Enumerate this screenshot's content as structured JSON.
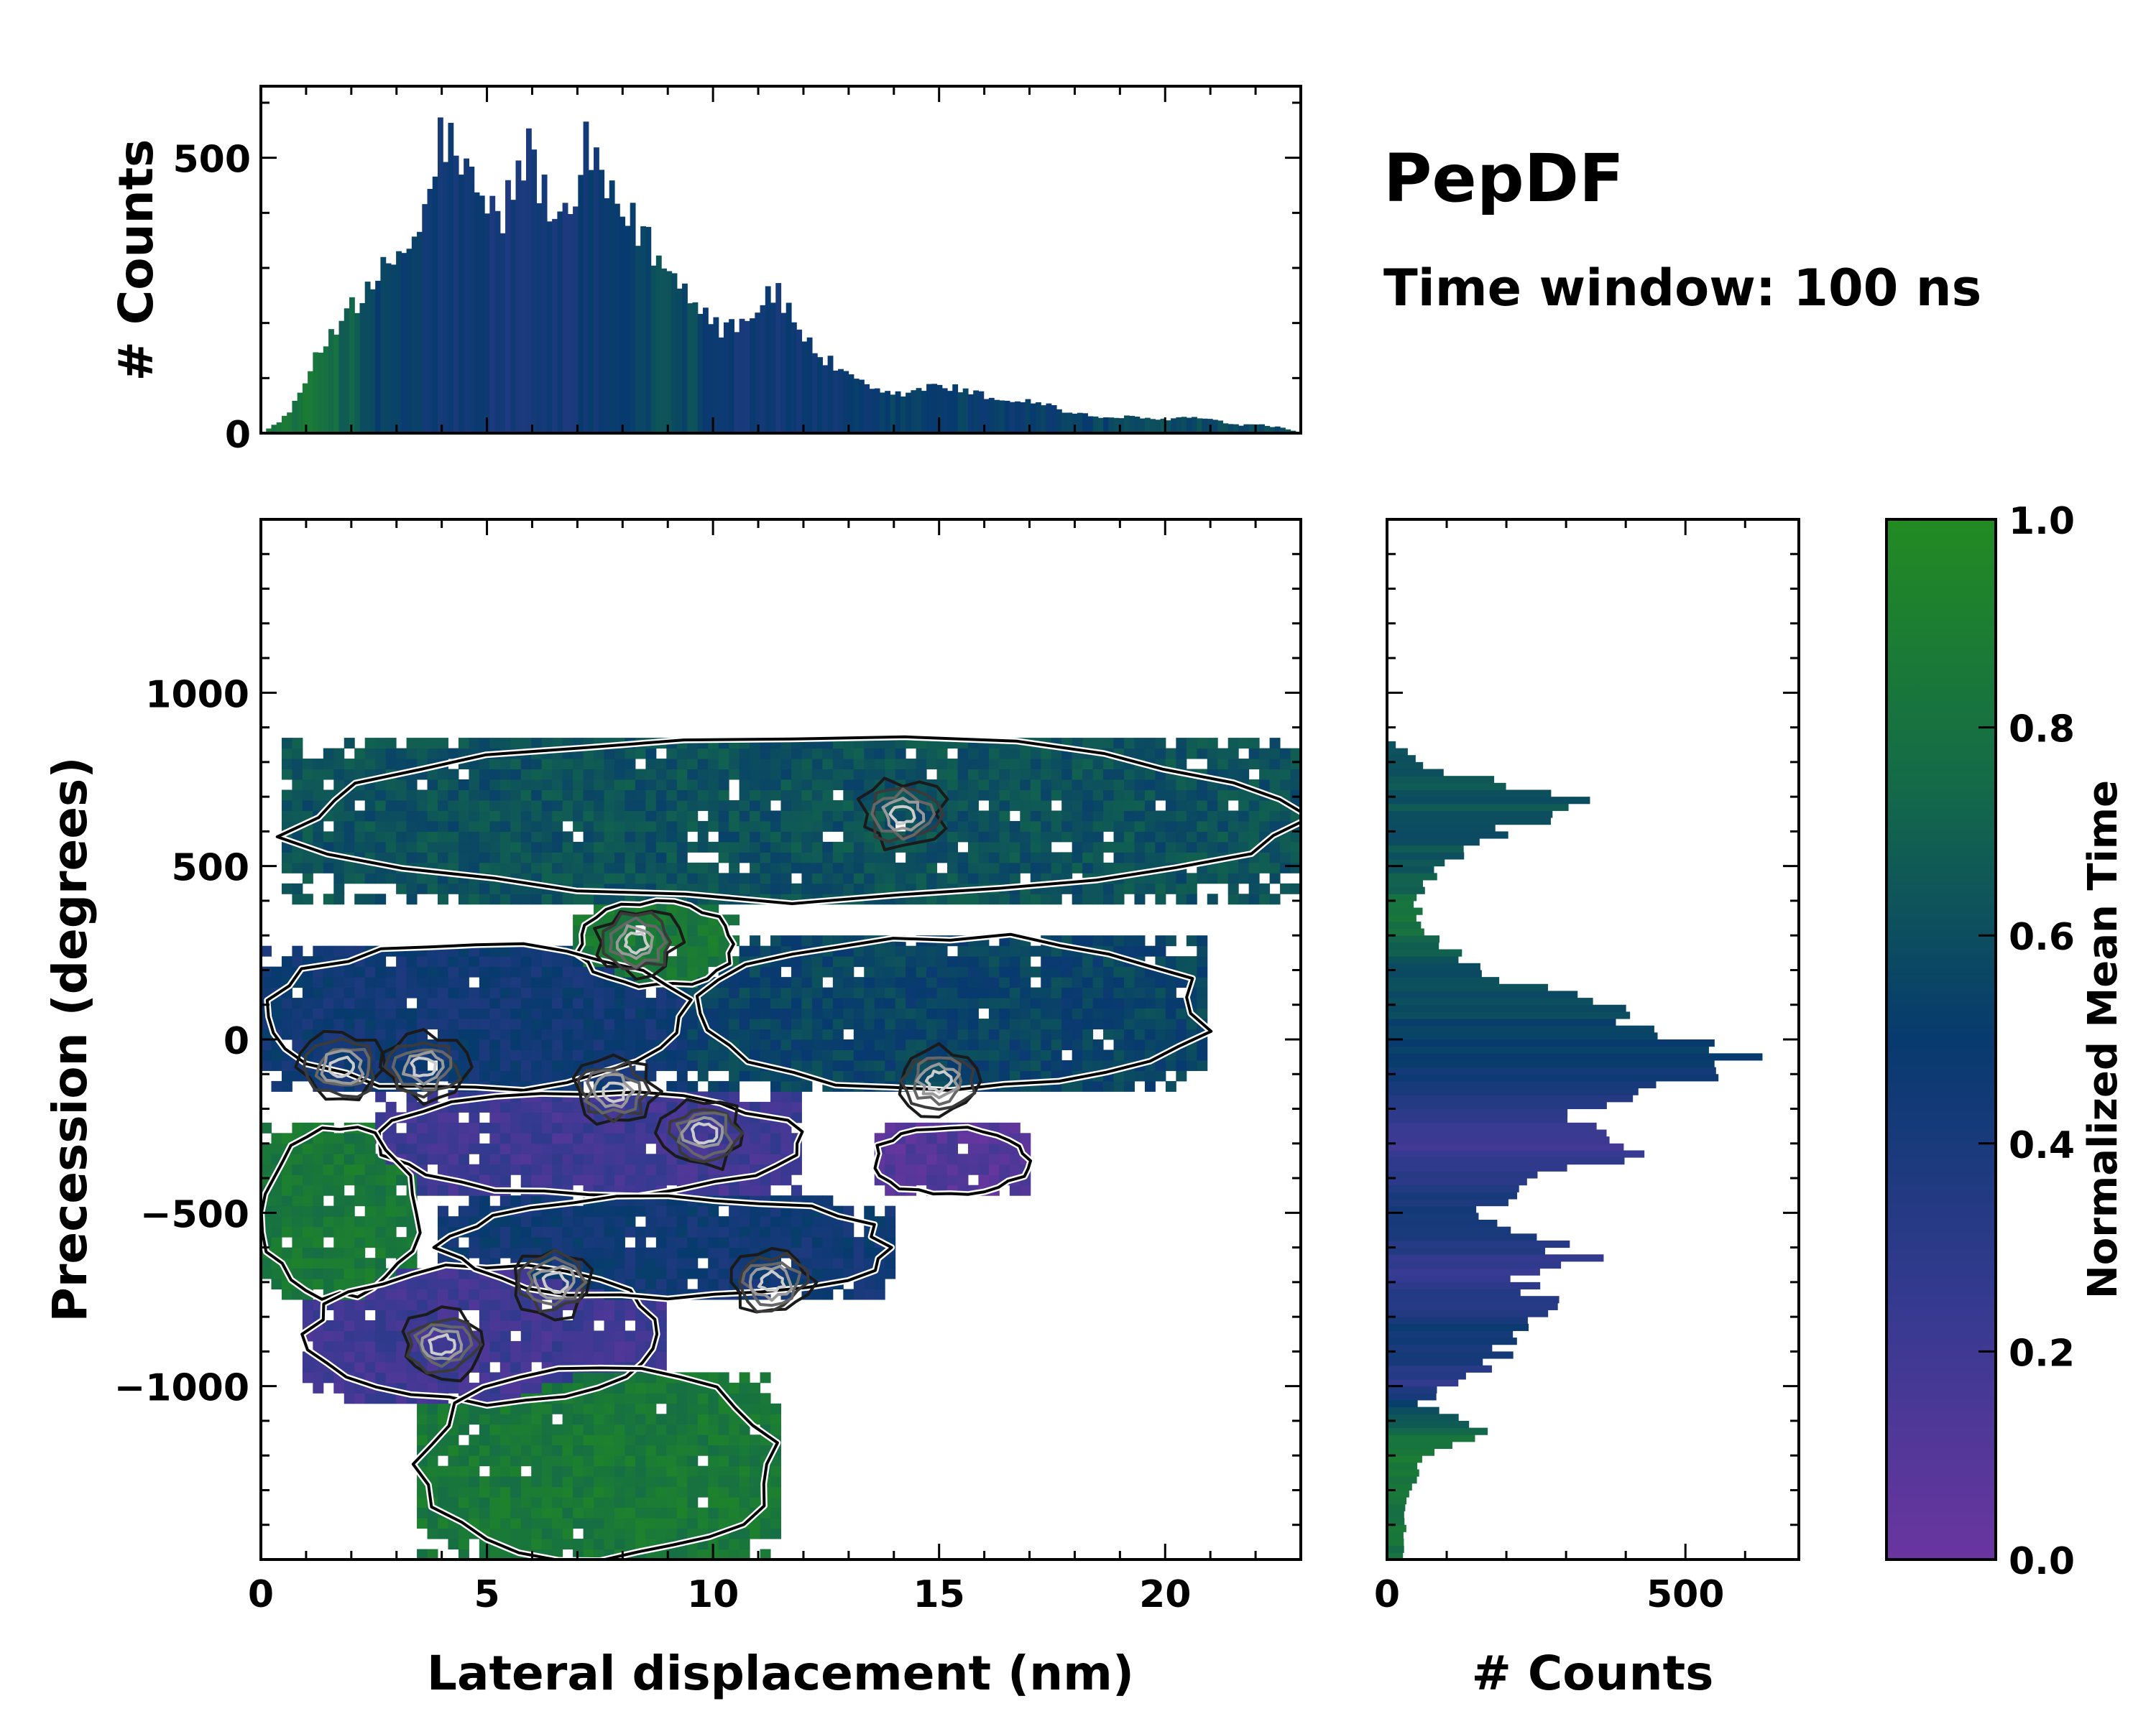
{
  "title": "PepDF",
  "subtitle": "Time window: 100 ns",
  "chart_data": [
    {
      "id": "top-histogram",
      "type": "bar",
      "description": "Histogram of lateral displacement, bars colored by normalized mean time",
      "ylabel": "# Counts",
      "xlim": [
        0,
        23
      ],
      "ylim": [
        0,
        630
      ],
      "yticks": [
        0,
        500
      ],
      "ytick_labels": [
        "0",
        "500"
      ],
      "bin_width": 0.115,
      "peaks": [
        {
          "x": 0.0,
          "y": 0
        },
        {
          "x": 0.4,
          "y": 20
        },
        {
          "x": 0.8,
          "y": 60
        },
        {
          "x": 1.1,
          "y": 120
        },
        {
          "x": 1.5,
          "y": 180
        },
        {
          "x": 2.0,
          "y": 250
        },
        {
          "x": 2.5,
          "y": 260
        },
        {
          "x": 2.8,
          "y": 320
        },
        {
          "x": 3.3,
          "y": 350
        },
        {
          "x": 3.7,
          "y": 420
        },
        {
          "x": 4.0,
          "y": 570
        },
        {
          "x": 4.4,
          "y": 500
        },
        {
          "x": 4.9,
          "y": 430
        },
        {
          "x": 5.3,
          "y": 400
        },
        {
          "x": 5.9,
          "y": 530
        },
        {
          "x": 6.4,
          "y": 420
        },
        {
          "x": 6.8,
          "y": 380
        },
        {
          "x": 7.2,
          "y": 530
        },
        {
          "x": 7.8,
          "y": 420
        },
        {
          "x": 8.4,
          "y": 380
        },
        {
          "x": 9.0,
          "y": 300
        },
        {
          "x": 9.6,
          "y": 260
        },
        {
          "x": 10.1,
          "y": 200
        },
        {
          "x": 10.7,
          "y": 210
        },
        {
          "x": 11.3,
          "y": 270
        },
        {
          "x": 11.8,
          "y": 210
        },
        {
          "x": 12.3,
          "y": 150
        },
        {
          "x": 12.9,
          "y": 110
        },
        {
          "x": 13.5,
          "y": 80
        },
        {
          "x": 14.0,
          "y": 70
        },
        {
          "x": 14.5,
          "y": 80
        },
        {
          "x": 15.0,
          "y": 90
        },
        {
          "x": 15.5,
          "y": 80
        },
        {
          "x": 16.0,
          "y": 70
        },
        {
          "x": 16.6,
          "y": 60
        },
        {
          "x": 17.2,
          "y": 60
        },
        {
          "x": 17.8,
          "y": 40
        },
        {
          "x": 18.5,
          "y": 30
        },
        {
          "x": 19.2,
          "y": 30
        },
        {
          "x": 19.8,
          "y": 25
        },
        {
          "x": 20.5,
          "y": 30
        },
        {
          "x": 21.0,
          "y": 25
        },
        {
          "x": 21.6,
          "y": 15
        },
        {
          "x": 22.2,
          "y": 15
        },
        {
          "x": 22.6,
          "y": 10
        },
        {
          "x": 23.0,
          "y": 0
        }
      ],
      "bar_time_profile": [
        {
          "x": 0.0,
          "t": 0.85
        },
        {
          "x": 1.5,
          "t": 0.8
        },
        {
          "x": 2.5,
          "t": 0.55
        },
        {
          "x": 4.0,
          "t": 0.45
        },
        {
          "x": 6.0,
          "t": 0.4
        },
        {
          "x": 8.0,
          "t": 0.5
        },
        {
          "x": 9.0,
          "t": 0.65
        },
        {
          "x": 10.5,
          "t": 0.45
        },
        {
          "x": 12.5,
          "t": 0.45
        },
        {
          "x": 14.0,
          "t": 0.55
        },
        {
          "x": 17.0,
          "t": 0.5
        },
        {
          "x": 20.0,
          "t": 0.6
        },
        {
          "x": 23.0,
          "t": 0.6
        }
      ]
    },
    {
      "id": "main-heatmap",
      "type": "heatmap",
      "description": "2D occupancy of lateral displacement vs precession, colored by normalized mean time with density contours",
      "xlabel": "Lateral displacement (nm)",
      "ylabel": "Precession (degrees)",
      "xlim": [
        0,
        23
      ],
      "ylim": [
        -1500,
        1500
      ],
      "xticks": [
        0,
        5,
        10,
        15,
        20
      ],
      "xtick_labels": [
        "0",
        "5",
        "10",
        "15",
        "20"
      ],
      "yticks": [
        -1000,
        -500,
        0,
        500,
        1000
      ],
      "ytick_labels": [
        "−1000",
        "−500",
        "0",
        "500",
        "1000"
      ],
      "regions": [
        {
          "name": "upper band",
          "x": [
            0.5,
            23.0
          ],
          "y": [
            400,
            880
          ],
          "t": 0.62
        },
        {
          "name": "upper-mid patch",
          "x": [
            7.0,
            10.5
          ],
          "y": [
            150,
            400
          ],
          "t": 0.85
        },
        {
          "name": "central left",
          "x": [
            0.0,
            9.5
          ],
          "y": [
            -150,
            280
          ],
          "t": 0.45
        },
        {
          "name": "central right",
          "x": [
            9.5,
            21.0
          ],
          "y": [
            -150,
            300
          ],
          "t": 0.55
        },
        {
          "name": "violet core",
          "x": [
            2.5,
            12.0
          ],
          "y": [
            -450,
            -150
          ],
          "t": 0.2
        },
        {
          "name": "violet arm",
          "x": [
            13.5,
            17.0
          ],
          "y": [
            -450,
            -250
          ],
          "t": 0.1
        },
        {
          "name": "green left",
          "x": [
            0.0,
            3.5
          ],
          "y": [
            -750,
            -250
          ],
          "t": 0.85
        },
        {
          "name": "lower violet",
          "x": [
            1.0,
            9.0
          ],
          "y": [
            -1050,
            -650
          ],
          "t": 0.2
        },
        {
          "name": "lower mid",
          "x": [
            4.0,
            14.0
          ],
          "y": [
            -750,
            -450
          ],
          "t": 0.45
        },
        {
          "name": "bottom green",
          "x": [
            3.5,
            11.5
          ],
          "y": [
            -1500,
            -950
          ],
          "t": 0.85
        }
      ],
      "density_peaks": [
        {
          "x": 1.8,
          "y": -80
        },
        {
          "x": 3.6,
          "y": -80
        },
        {
          "x": 7.8,
          "y": -150
        },
        {
          "x": 9.8,
          "y": -270
        },
        {
          "x": 15.0,
          "y": -120
        },
        {
          "x": 4.0,
          "y": -880
        },
        {
          "x": 6.5,
          "y": -700
        },
        {
          "x": 11.3,
          "y": -700
        },
        {
          "x": 8.3,
          "y": 280
        },
        {
          "x": 14.2,
          "y": 650
        }
      ]
    },
    {
      "id": "right-histogram",
      "type": "bar",
      "orientation": "horizontal",
      "description": "Histogram of precession, bars colored by normalized mean time",
      "xlabel": "# Counts",
      "xlim": [
        0,
        690
      ],
      "ylim": [
        -1500,
        1500
      ],
      "xticks": [
        0,
        500
      ],
      "xtick_labels": [
        "0",
        "500"
      ],
      "bin_width": 20,
      "peaks": [
        {
          "y": -1500,
          "c": 30
        },
        {
          "y": -1400,
          "c": 30
        },
        {
          "y": -1300,
          "c": 40
        },
        {
          "y": -1200,
          "c": 60
        },
        {
          "y": -1130,
          "c": 170
        },
        {
          "y": -1050,
          "c": 60
        },
        {
          "y": -950,
          "c": 160
        },
        {
          "y": -850,
          "c": 250
        },
        {
          "y": -780,
          "c": 300
        },
        {
          "y": -700,
          "c": 230
        },
        {
          "y": -640,
          "c": 350
        },
        {
          "y": -560,
          "c": 240
        },
        {
          "y": -500,
          "c": 170
        },
        {
          "y": -420,
          "c": 260
        },
        {
          "y": -300,
          "c": 440
        },
        {
          "y": -200,
          "c": 330
        },
        {
          "y": -80,
          "c": 620
        },
        {
          "y": 0,
          "c": 500
        },
        {
          "y": 100,
          "c": 350
        },
        {
          "y": 200,
          "c": 170
        },
        {
          "y": 300,
          "c": 70
        },
        {
          "y": 400,
          "c": 50
        },
        {
          "y": 500,
          "c": 90
        },
        {
          "y": 600,
          "c": 200
        },
        {
          "y": 690,
          "c": 350
        },
        {
          "y": 780,
          "c": 80
        },
        {
          "y": 870,
          "c": 0
        },
        {
          "y": 1500,
          "c": 0
        }
      ],
      "bar_time_profile": [
        {
          "y": -1500,
          "t": 0.8
        },
        {
          "y": -1150,
          "t": 0.85
        },
        {
          "y": -1000,
          "t": 0.3
        },
        {
          "y": -850,
          "t": 0.45
        },
        {
          "y": -650,
          "t": 0.25
        },
        {
          "y": -500,
          "t": 0.45
        },
        {
          "y": -300,
          "t": 0.2
        },
        {
          "y": -150,
          "t": 0.4
        },
        {
          "y": 0,
          "t": 0.55
        },
        {
          "y": 200,
          "t": 0.6
        },
        {
          "y": 350,
          "t": 0.85
        },
        {
          "y": 500,
          "t": 0.62
        },
        {
          "y": 880,
          "t": 0.65
        }
      ]
    },
    {
      "id": "colorbar",
      "type": "colorbar",
      "label": "Normalized Mean Time",
      "range": [
        0.0,
        1.0
      ],
      "ticks": [
        0.0,
        0.2,
        0.4,
        0.6,
        0.8,
        1.0
      ],
      "tick_labels": [
        "0.0",
        "0.2",
        "0.4",
        "0.6",
        "0.8",
        "1.0"
      ],
      "stops": [
        {
          "t": 0.0,
          "color": "#6a35a0"
        },
        {
          "t": 0.25,
          "color": "#343a8f"
        },
        {
          "t": 0.5,
          "color": "#073a6e"
        },
        {
          "t": 0.75,
          "color": "#146b48"
        },
        {
          "t": 1.0,
          "color": "#228b22"
        }
      ]
    }
  ]
}
